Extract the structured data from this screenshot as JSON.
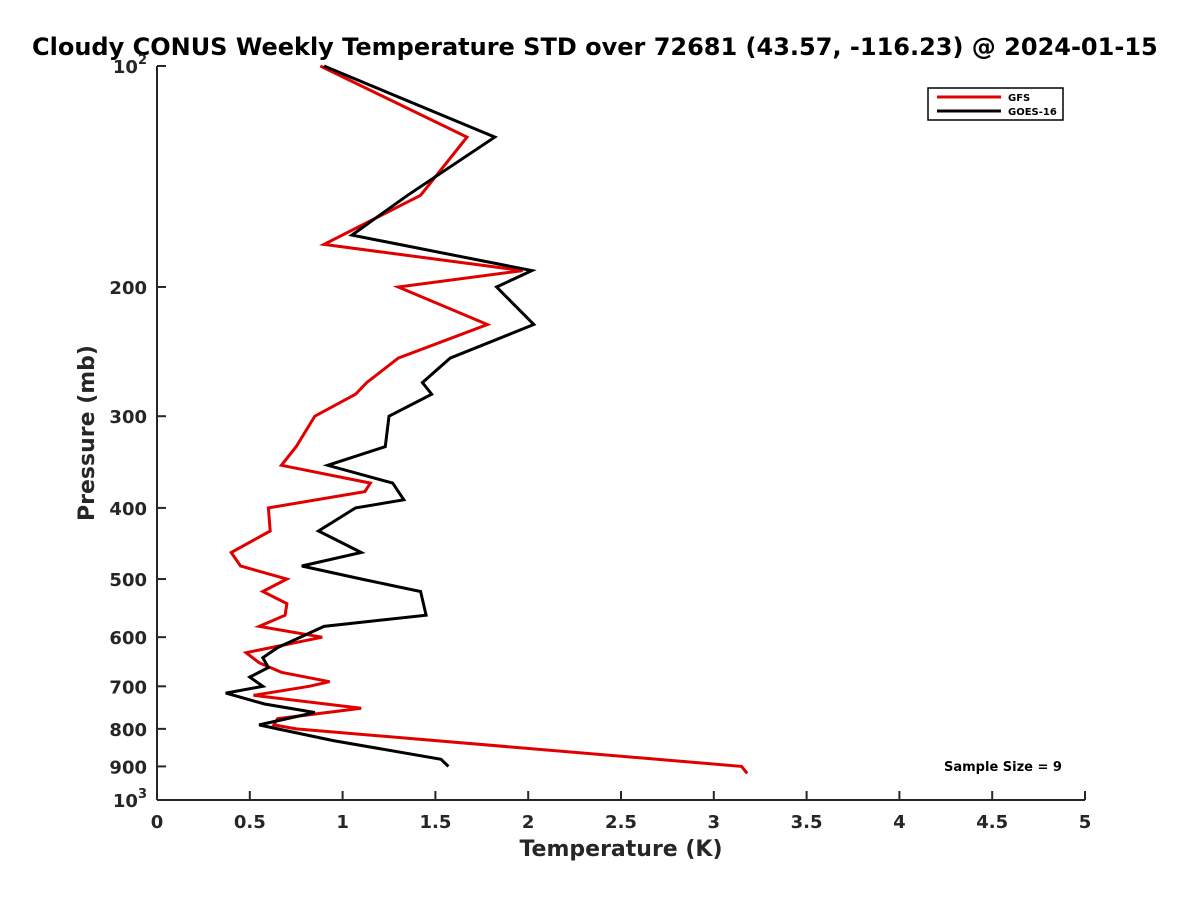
{
  "chart_data": {
    "type": "line",
    "title": "Cloudy CONUS Weekly Temperature STD over 72681 (43.57, -116.23) @ 2024-01-15",
    "xlabel": "Temperature (K)",
    "ylabel": "Pressure (mb)",
    "xlim": [
      0,
      5
    ],
    "ylim": [
      100,
      1000
    ],
    "y_scale": "log",
    "y_reversed": true,
    "grid": false,
    "x_ticks": [
      "0",
      "0.5",
      "1",
      "1.5",
      "2",
      "2.5",
      "3",
      "3.5",
      "4",
      "4.5",
      "5"
    ],
    "y_ticks": [
      {
        "value": 100,
        "base": "10",
        "exp": "2"
      },
      {
        "value": 200,
        "label": "200"
      },
      {
        "value": 300,
        "label": "300"
      },
      {
        "value": 400,
        "label": "400"
      },
      {
        "value": 500,
        "label": "500"
      },
      {
        "value": 600,
        "label": "600"
      },
      {
        "value": 700,
        "label": "700"
      },
      {
        "value": 800,
        "label": "800"
      },
      {
        "value": 900,
        "label": "900"
      },
      {
        "value": 1000,
        "base": "10",
        "exp": "3"
      }
    ],
    "legend_position": "top-right",
    "annotation": "Sample Size = 9",
    "series": [
      {
        "name": "GFS",
        "color": "#e00000",
        "pressure": [
          100,
          125,
          150,
          175,
          190,
          200,
          225,
          250,
          270,
          280,
          300,
          330,
          350,
          370,
          380,
          400,
          430,
          460,
          480,
          500,
          520,
          540,
          560,
          580,
          600,
          630,
          650,
          670,
          690,
          700,
          720,
          750,
          775,
          790,
          800,
          900,
          920
        ],
        "temperature": [
          0.88,
          1.67,
          1.42,
          0.9,
          1.97,
          1.3,
          1.78,
          1.3,
          1.13,
          1.07,
          0.85,
          0.75,
          0.67,
          1.15,
          1.12,
          0.6,
          0.61,
          0.4,
          0.45,
          0.7,
          0.57,
          0.7,
          0.69,
          0.55,
          0.89,
          0.48,
          0.55,
          0.67,
          0.93,
          0.82,
          0.52,
          1.1,
          0.65,
          0.63,
          0.75,
          3.15,
          3.18
        ]
      },
      {
        "name": "GOES-16",
        "color": "#000000",
        "pressure": [
          100,
          125,
          150,
          170,
          190,
          200,
          225,
          250,
          270,
          280,
          300,
          330,
          350,
          370,
          390,
          400,
          430,
          460,
          480,
          500,
          520,
          560,
          580,
          620,
          640,
          660,
          680,
          700,
          715,
          740,
          760,
          790,
          800,
          830,
          880,
          900
        ],
        "temperature": [
          0.9,
          1.82,
          1.35,
          1.05,
          2.02,
          1.83,
          2.03,
          1.58,
          1.43,
          1.48,
          1.25,
          1.23,
          0.92,
          1.27,
          1.33,
          1.07,
          0.87,
          1.1,
          0.78,
          1.1,
          1.42,
          1.45,
          0.9,
          0.65,
          0.57,
          0.6,
          0.5,
          0.57,
          0.37,
          0.58,
          0.85,
          0.55,
          0.65,
          0.95,
          1.53,
          1.57
        ]
      }
    ]
  }
}
